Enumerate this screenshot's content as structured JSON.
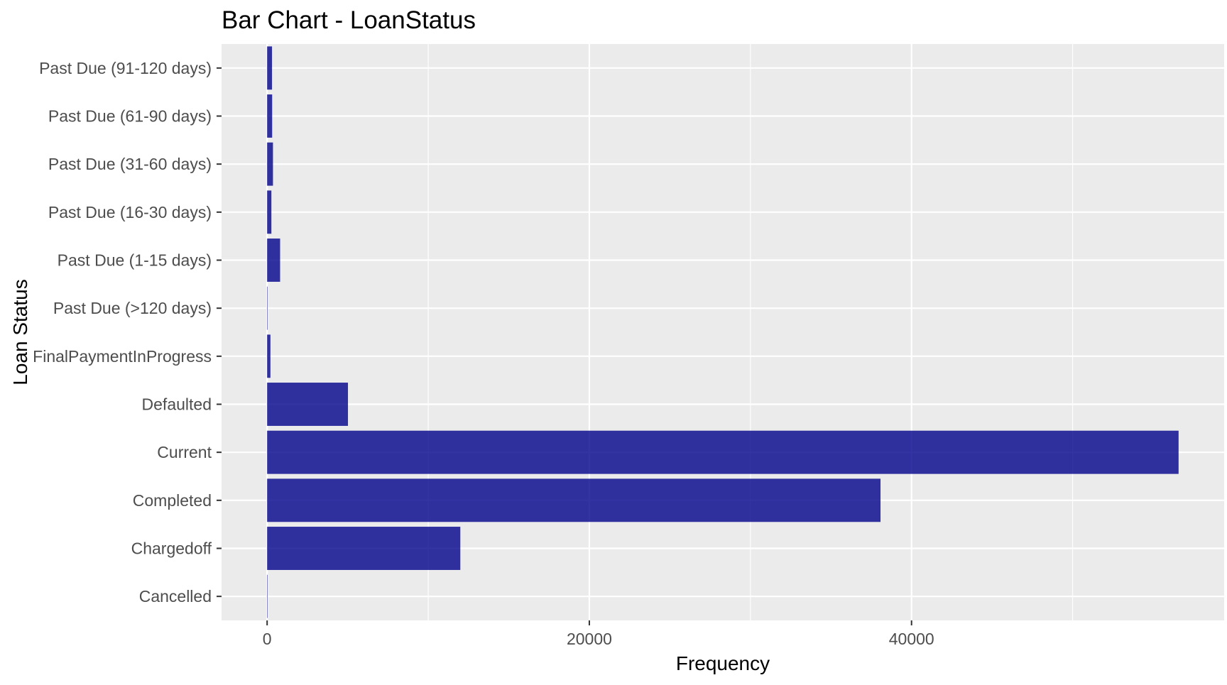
{
  "chart_data": {
    "type": "bar",
    "orientation": "horizontal",
    "title": "Bar Chart - LoanStatus",
    "xlabel": "Frequency",
    "ylabel": "Loan Status",
    "categories": [
      "Cancelled",
      "Chargedoff",
      "Completed",
      "Current",
      "Defaulted",
      "FinalPaymentInProgress",
      "Past Due (>120 days)",
      "Past Due (1-15 days)",
      "Past Due (16-30 days)",
      "Past Due (31-60 days)",
      "Past Due (61-90 days)",
      "Past Due (91-120 days)"
    ],
    "values": [
      5,
      11992,
      38074,
      56576,
      5018,
      205,
      16,
      806,
      265,
      363,
      313,
      304
    ],
    "xlim": [
      -2829,
      59405
    ],
    "x_ticks": [
      0,
      20000,
      40000
    ],
    "x_tick_labels": [
      "0",
      "20000",
      "40000"
    ],
    "bar_color": "#00008B",
    "bar_opacity": 0.8,
    "panel_color": "#EBEBEB",
    "grid": true,
    "legend": "none"
  }
}
